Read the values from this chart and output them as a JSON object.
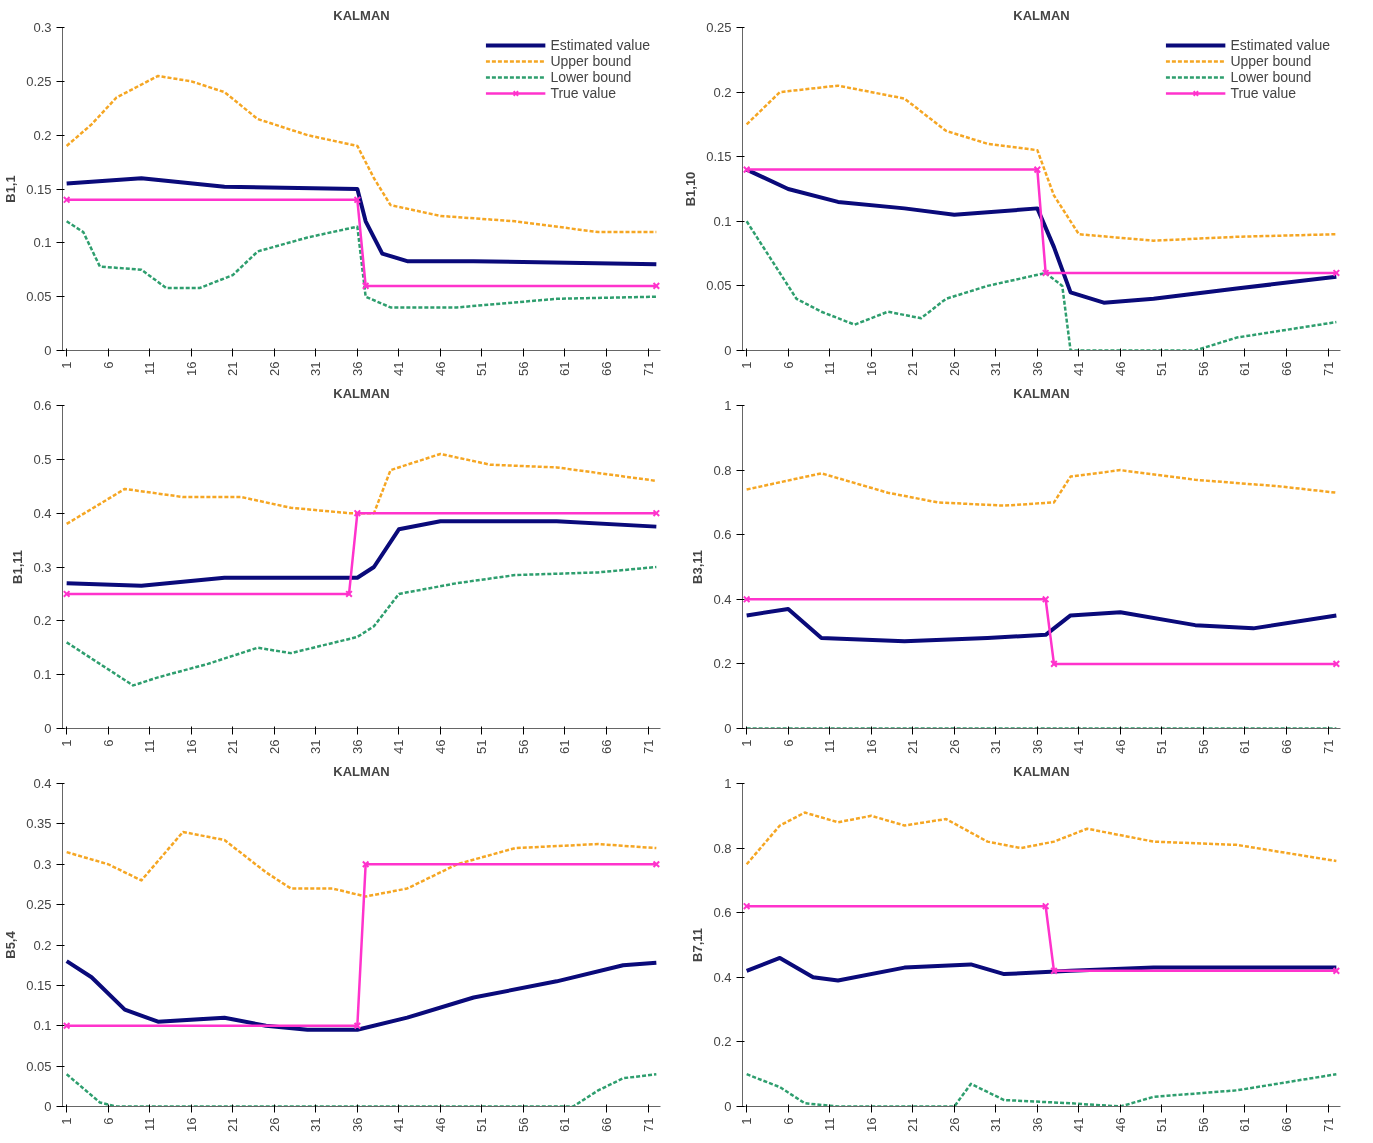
{
  "chart_data": [
    {
      "type": "line",
      "title": "KALMAN",
      "ylabel": "B1,1",
      "xlim": [
        0.5,
        72.5
      ],
      "xticks": [
        1,
        6,
        11,
        16,
        21,
        26,
        31,
        36,
        41,
        46,
        51,
        56,
        61,
        66,
        71
      ],
      "ylim": [
        0,
        0.3
      ],
      "yticks": [
        0,
        0.05,
        0.1,
        0.15,
        0.2,
        0.25,
        0.3
      ],
      "grid": false,
      "legend": "top right",
      "series": [
        {
          "name": "Estimated value",
          "color": "#0a0a7a",
          "line_style": "solid",
          "marker": "none",
          "x": [
            1,
            10,
            20,
            36,
            37,
            39,
            42,
            50,
            72
          ],
          "values": [
            0.155,
            0.16,
            0.152,
            0.15,
            0.12,
            0.09,
            0.083,
            0.083,
            0.08
          ]
        },
        {
          "name": "Upper bound",
          "color": "#f5a623",
          "line_style": "dashed",
          "marker": "none",
          "x": [
            1,
            4,
            7,
            12,
            16,
            20,
            24,
            30,
            36,
            38,
            40,
            46,
            55,
            65,
            72
          ],
          "values": [
            0.19,
            0.21,
            0.235,
            0.255,
            0.25,
            0.24,
            0.215,
            0.2,
            0.19,
            0.16,
            0.135,
            0.125,
            0.12,
            0.11,
            0.11
          ]
        },
        {
          "name": "Lower bound",
          "color": "#2e9e6e",
          "line_style": "dashed",
          "marker": "none",
          "x": [
            1,
            3,
            5,
            10,
            13,
            17,
            21,
            24,
            30,
            36,
            37,
            40,
            48,
            60,
            72
          ],
          "values": [
            0.12,
            0.11,
            0.078,
            0.075,
            0.058,
            0.058,
            0.07,
            0.092,
            0.105,
            0.115,
            0.05,
            0.04,
            0.04,
            0.048,
            0.05
          ]
        },
        {
          "name": "True value",
          "color": "#ff33cc",
          "line_style": "solid",
          "marker": "cross",
          "x": [
            1,
            36,
            37,
            72
          ],
          "values": [
            0.14,
            0.14,
            0.06,
            0.06
          ]
        }
      ]
    },
    {
      "type": "line",
      "title": "KALMAN",
      "ylabel": "B1,10",
      "xlim": [
        0.5,
        72.5
      ],
      "xticks": [
        1,
        6,
        11,
        16,
        21,
        26,
        31,
        36,
        41,
        46,
        51,
        56,
        61,
        66,
        71
      ],
      "ylim": [
        0,
        0.25
      ],
      "yticks": [
        0,
        0.05,
        0.1,
        0.15,
        0.2,
        0.25
      ],
      "grid": false,
      "legend": "top right",
      "series": [
        {
          "name": "Estimated value",
          "color": "#0a0a7a",
          "line_style": "solid",
          "marker": "none",
          "x": [
            1,
            6,
            12,
            20,
            26,
            36,
            38,
            40,
            44,
            50,
            60,
            72
          ],
          "values": [
            0.14,
            0.125,
            0.115,
            0.11,
            0.105,
            0.11,
            0.08,
            0.045,
            0.037,
            0.04,
            0.048,
            0.057
          ]
        },
        {
          "name": "Upper bound",
          "color": "#f5a623",
          "line_style": "dashed",
          "marker": "none",
          "x": [
            1,
            5,
            12,
            20,
            25,
            30,
            36,
            38,
            41,
            50,
            60,
            72
          ],
          "values": [
            0.175,
            0.2,
            0.205,
            0.195,
            0.17,
            0.16,
            0.155,
            0.12,
            0.09,
            0.085,
            0.088,
            0.09
          ]
        },
        {
          "name": "Lower bound",
          "color": "#2e9e6e",
          "line_style": "dashed",
          "marker": "none",
          "x": [
            1,
            4,
            7,
            10,
            14,
            18,
            22,
            25,
            30,
            37,
            39,
            40,
            55,
            60,
            72
          ],
          "values": [
            0.1,
            0.07,
            0.04,
            0.03,
            0.02,
            0.03,
            0.025,
            0.04,
            0.05,
            0.06,
            0.05,
            0,
            0,
            0.01,
            0.022
          ]
        },
        {
          "name": "True value",
          "color": "#ff33cc",
          "line_style": "solid",
          "marker": "cross",
          "x": [
            1,
            36,
            37,
            72
          ],
          "values": [
            0.14,
            0.14,
            0.06,
            0.06
          ]
        }
      ]
    },
    {
      "type": "line",
      "title": "KALMAN",
      "ylabel": "B1,11",
      "xlim": [
        0.5,
        72.5
      ],
      "xticks": [
        1,
        6,
        11,
        16,
        21,
        26,
        31,
        36,
        41,
        46,
        51,
        56,
        61,
        66,
        71
      ],
      "ylim": [
        0,
        0.6
      ],
      "yticks": [
        0,
        0.1,
        0.2,
        0.3,
        0.4,
        0.5,
        0.6
      ],
      "grid": false,
      "series": [
        {
          "color": "#0a0a7a",
          "line_style": "solid",
          "marker": "none",
          "x": [
            1,
            10,
            20,
            36,
            38,
            41,
            46,
            60,
            72
          ],
          "values": [
            0.27,
            0.265,
            0.28,
            0.28,
            0.3,
            0.37,
            0.385,
            0.385,
            0.375
          ]
        },
        {
          "color": "#f5a623",
          "line_style": "dashed",
          "marker": "none",
          "x": [
            1,
            8,
            15,
            22,
            28,
            35,
            38,
            40,
            46,
            52,
            60,
            72
          ],
          "values": [
            0.38,
            0.445,
            0.43,
            0.43,
            0.41,
            0.4,
            0.4,
            0.48,
            0.51,
            0.49,
            0.485,
            0.46
          ]
        },
        {
          "color": "#2e9e6e",
          "line_style": "dashed",
          "marker": "none",
          "x": [
            1,
            5,
            9,
            12,
            18,
            24,
            28,
            36,
            38,
            41,
            48,
            55,
            65,
            72
          ],
          "values": [
            0.16,
            0.12,
            0.08,
            0.095,
            0.12,
            0.15,
            0.14,
            0.17,
            0.19,
            0.25,
            0.27,
            0.285,
            0.29,
            0.3
          ]
        },
        {
          "color": "#ff33cc",
          "line_style": "solid",
          "marker": "cross",
          "x": [
            1,
            35,
            36,
            72
          ],
          "values": [
            0.25,
            0.25,
            0.4,
            0.4
          ]
        }
      ]
    },
    {
      "type": "line",
      "title": "KALMAN",
      "ylabel": "B3,11",
      "xlim": [
        0.5,
        72.5
      ],
      "xticks": [
        1,
        6,
        11,
        16,
        21,
        26,
        31,
        36,
        41,
        46,
        51,
        56,
        61,
        66,
        71
      ],
      "ylim": [
        0,
        1
      ],
      "yticks": [
        0,
        0.2,
        0.4,
        0.6,
        0.8,
        1
      ],
      "grid": false,
      "series": [
        {
          "color": "#0a0a7a",
          "line_style": "solid",
          "marker": "none",
          "x": [
            1,
            6,
            10,
            20,
            30,
            37,
            40,
            46,
            55,
            62,
            72
          ],
          "values": [
            0.35,
            0.37,
            0.28,
            0.27,
            0.28,
            0.29,
            0.35,
            0.36,
            0.32,
            0.31,
            0.35
          ]
        },
        {
          "color": "#f5a623",
          "line_style": "dashed",
          "marker": "none",
          "x": [
            1,
            10,
            18,
            24,
            32,
            38,
            40,
            46,
            55,
            65,
            72
          ],
          "values": [
            0.74,
            0.79,
            0.73,
            0.7,
            0.69,
            0.7,
            0.78,
            0.8,
            0.77,
            0.75,
            0.73
          ]
        },
        {
          "color": "#2e9e6e",
          "line_style": "dashed",
          "marker": "none",
          "x": [
            1,
            72
          ],
          "values": [
            0,
            0
          ]
        },
        {
          "color": "#ff33cc",
          "line_style": "solid",
          "marker": "cross",
          "x": [
            1,
            37,
            38,
            72
          ],
          "values": [
            0.4,
            0.4,
            0.2,
            0.2
          ]
        }
      ]
    },
    {
      "type": "line",
      "title": "KALMAN",
      "ylabel": "B5,4",
      "xlim": [
        0.5,
        72.5
      ],
      "xticks": [
        1,
        6,
        11,
        16,
        21,
        26,
        31,
        36,
        41,
        46,
        51,
        56,
        61,
        66,
        71
      ],
      "ylim": [
        0,
        0.4
      ],
      "yticks": [
        0,
        0.05,
        0.1,
        0.15,
        0.2,
        0.25,
        0.3,
        0.35,
        0.4
      ],
      "grid": false,
      "series": [
        {
          "color": "#0a0a7a",
          "line_style": "solid",
          "marker": "none",
          "x": [
            1,
            4,
            8,
            12,
            20,
            25,
            30,
            36,
            42,
            50,
            60,
            68,
            72
          ],
          "values": [
            0.18,
            0.16,
            0.12,
            0.105,
            0.11,
            0.1,
            0.095,
            0.095,
            0.11,
            0.135,
            0.155,
            0.175,
            0.178
          ]
        },
        {
          "color": "#f5a623",
          "line_style": "dashed",
          "marker": "none",
          "x": [
            1,
            6,
            10,
            15,
            20,
            25,
            28,
            33,
            37,
            42,
            48,
            55,
            65,
            72
          ],
          "values": [
            0.315,
            0.3,
            0.28,
            0.34,
            0.33,
            0.29,
            0.27,
            0.27,
            0.26,
            0.27,
            0.3,
            0.32,
            0.325,
            0.32
          ]
        },
        {
          "color": "#2e9e6e",
          "line_style": "dashed",
          "marker": "none",
          "x": [
            1,
            5,
            7,
            62,
            65,
            68,
            72
          ],
          "values": [
            0.04,
            0.005,
            0,
            0,
            0.02,
            0.035,
            0.04
          ]
        },
        {
          "color": "#ff33cc",
          "line_style": "solid",
          "marker": "cross",
          "x": [
            1,
            36,
            37,
            72
          ],
          "values": [
            0.1,
            0.1,
            0.3,
            0.3
          ]
        }
      ]
    },
    {
      "type": "line",
      "title": "KALMAN",
      "ylabel": "B7,11",
      "xlim": [
        0.5,
        72.5
      ],
      "xticks": [
        1,
        6,
        11,
        16,
        21,
        26,
        31,
        36,
        41,
        46,
        51,
        56,
        61,
        66,
        71
      ],
      "ylim": [
        0,
        1
      ],
      "yticks": [
        0,
        0.2,
        0.4,
        0.6,
        0.8,
        1
      ],
      "grid": false,
      "series": [
        {
          "color": "#0a0a7a",
          "line_style": "solid",
          "marker": "none",
          "x": [
            1,
            5,
            9,
            12,
            20,
            28,
            32,
            40,
            50,
            60,
            72
          ],
          "values": [
            0.42,
            0.46,
            0.4,
            0.39,
            0.43,
            0.44,
            0.41,
            0.42,
            0.43,
            0.43,
            0.43
          ]
        },
        {
          "color": "#f5a623",
          "line_style": "dashed",
          "marker": "none",
          "x": [
            1,
            5,
            8,
            12,
            16,
            20,
            25,
            30,
            34,
            38,
            42,
            50,
            60,
            72
          ],
          "values": [
            0.75,
            0.87,
            0.91,
            0.88,
            0.9,
            0.87,
            0.89,
            0.82,
            0.8,
            0.82,
            0.86,
            0.82,
            0.81,
            0.76
          ]
        },
        {
          "color": "#2e9e6e",
          "line_style": "dashed",
          "marker": "none",
          "x": [
            1,
            5,
            8,
            12,
            26,
            28,
            32,
            40,
            46,
            50,
            60,
            72
          ],
          "values": [
            0.1,
            0.06,
            0.01,
            0,
            0,
            0.07,
            0.02,
            0.01,
            0,
            0.03,
            0.05,
            0.1
          ]
        },
        {
          "color": "#ff33cc",
          "line_style": "solid",
          "marker": "cross",
          "x": [
            1,
            37,
            38,
            72
          ],
          "values": [
            0.62,
            0.62,
            0.42,
            0.42
          ]
        }
      ]
    }
  ]
}
